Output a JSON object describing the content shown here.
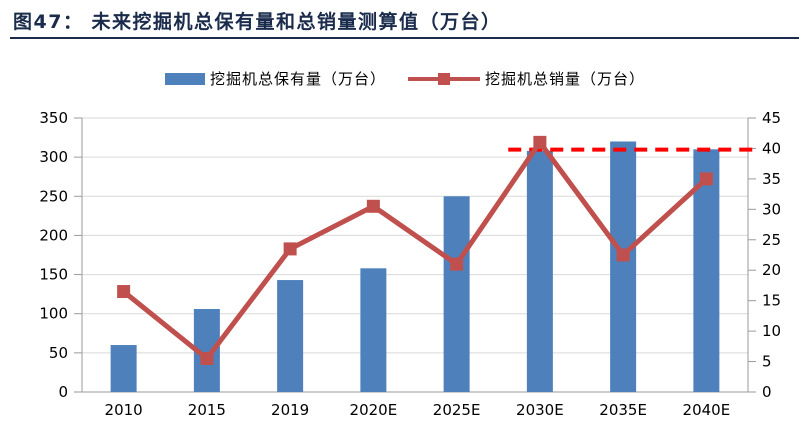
{
  "header": {
    "title": "图47： 未来挖掘机总保有量和总销量测算值（万台）"
  },
  "legend": [
    {
      "label": "挖掘机总保有量（万台）",
      "type": "bar"
    },
    {
      "label": "挖掘机总销量（万台）",
      "type": "line"
    }
  ],
  "chart_data": {
    "type": "bar",
    "subtype": "combo-bar-line-dual-axis",
    "title": "未来挖掘机总保有量和总销量测算值（万台）",
    "categories": [
      "2010",
      "2015",
      "2019",
      "2020E",
      "2025E",
      "2030E",
      "2035E",
      "2040E"
    ],
    "series": [
      {
        "name": "挖掘机总保有量（万台）",
        "type": "bar",
        "axis": "left",
        "color": "#4E81BC",
        "values": [
          60,
          106,
          143,
          158,
          250,
          308,
          320,
          310
        ]
      },
      {
        "name": "挖掘机总销量（万台）",
        "type": "line",
        "axis": "right",
        "color": "#C0504D",
        "marker": "square",
        "values": [
          16.5,
          5.5,
          23.5,
          30.5,
          21,
          41,
          22.5,
          35
        ]
      }
    ],
    "left_axis": {
      "min": 0,
      "max": 350,
      "step": 50,
      "ticks": [
        "0",
        "50",
        "100",
        "150",
        "200",
        "250",
        "300",
        "350"
      ]
    },
    "right_axis": {
      "min": 0,
      "max": 45,
      "step": 5,
      "ticks": [
        "0",
        "5",
        "10",
        "15",
        "20",
        "25",
        "30",
        "35",
        "40",
        "45"
      ]
    },
    "reference_line": {
      "value": 39.8,
      "axis": "right",
      "style": "dashed",
      "color": "#FF0000",
      "start_fraction": 0.64
    },
    "grid": true,
    "legend_position": "top"
  },
  "colors": {
    "bar": "#4E81BC",
    "line": "#C0504D",
    "reference": "#FF0000",
    "title": "#1A2B4C",
    "axis": "#9A9A9A",
    "gridline": "#D9D9D9",
    "tick_label": "#000000"
  }
}
